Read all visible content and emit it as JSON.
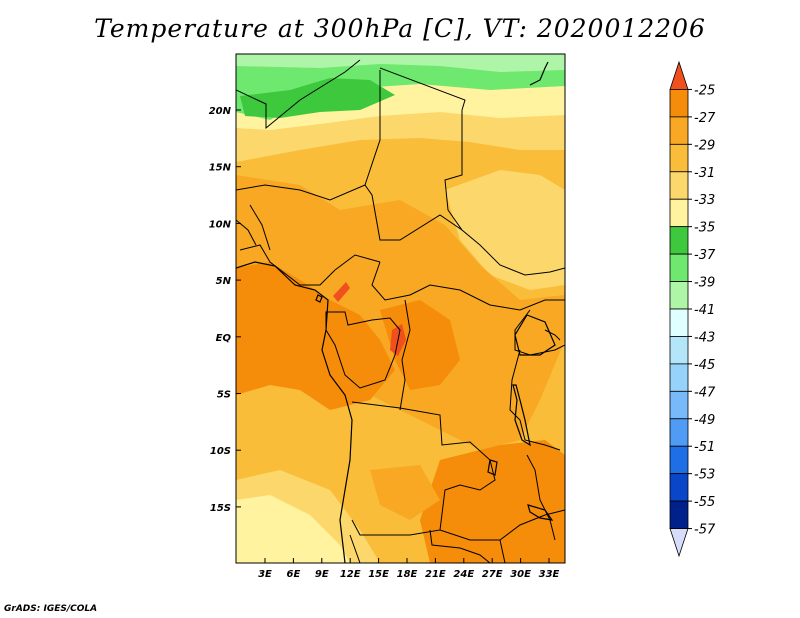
{
  "title": "Temperature at 300hPa [C], VT: 2020012206",
  "credit": "GrADS: IGES/COLA",
  "map": {
    "lon_labels": [
      "3E",
      "6E",
      "9E",
      "12E",
      "15E",
      "18E",
      "21E",
      "24E",
      "27E",
      "30E",
      "33E"
    ],
    "lat_labels": [
      "20N",
      "15N",
      "10N",
      "5N",
      "EQ",
      "5S",
      "10S",
      "15S"
    ]
  },
  "colorbar": {
    "levels": [
      "-25",
      "-27",
      "-29",
      "-31",
      "-33",
      "-35",
      "-37",
      "-39",
      "-41",
      "-43",
      "-45",
      "-47",
      "-49",
      "-51",
      "-53",
      "-55",
      "-57"
    ],
    "colors": [
      "#f0501e",
      "#f58c0a",
      "#f8a822",
      "#f9bd3a",
      "#fcd86c",
      "#fff3a0",
      "#3ec83e",
      "#6ee86e",
      "#aef5a8",
      "#e0ffff",
      "#b4e6fa",
      "#96d2fa",
      "#78b9fa",
      "#509cf5",
      "#1e6ee6",
      "#0a46c8",
      "#00208a",
      "#d6dcfa"
    ]
  }
}
